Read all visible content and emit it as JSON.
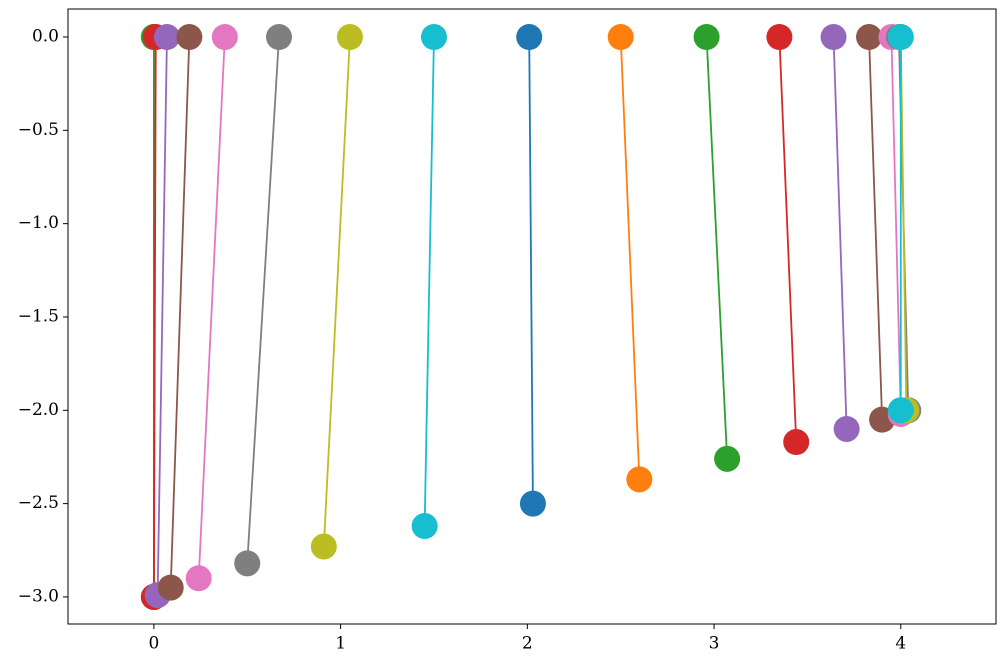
{
  "chart_data": {
    "type": "line",
    "xlim": [
      -0.46,
      4.51
    ],
    "ylim": [
      -3.145,
      0.15
    ],
    "xticks": [
      0,
      1,
      2,
      3,
      4
    ],
    "yticks": [
      {
        "value": 0,
        "label": "0.0"
      },
      {
        "value": -0.5,
        "label": "−0.5"
      },
      {
        "value": -1,
        "label": "−1.0"
      },
      {
        "value": -1.5,
        "label": "−1.5"
      },
      {
        "value": -2,
        "label": "−2.0"
      },
      {
        "value": -2.5,
        "label": "−2.5"
      },
      {
        "value": -3,
        "label": "−3.0"
      }
    ],
    "series": [
      {
        "color": "#1f77b4",
        "x": [
          0,
          0
        ],
        "values": [
          0,
          -3.0
        ]
      },
      {
        "color": "#ff7f0e",
        "x": [
          0,
          0
        ],
        "values": [
          0,
          -3.0
        ]
      },
      {
        "color": "#2ca02c",
        "x": [
          0,
          0
        ],
        "values": [
          0,
          -3.0
        ]
      },
      {
        "color": "#d62728",
        "x": [
          0.01,
          0
        ],
        "values": [
          0,
          -3.0
        ]
      },
      {
        "color": "#9467bd",
        "x": [
          0.07,
          0.02
        ],
        "values": [
          0,
          -2.99
        ]
      },
      {
        "color": "#8c564b",
        "x": [
          0.19,
          0.09
        ],
        "values": [
          0,
          -2.95
        ]
      },
      {
        "color": "#e377c2",
        "x": [
          0.38,
          0.24
        ],
        "values": [
          0,
          -2.9
        ]
      },
      {
        "color": "#7f7f7f",
        "x": [
          0.67,
          0.5
        ],
        "values": [
          0,
          -2.82
        ]
      },
      {
        "color": "#bcbd22",
        "x": [
          1.05,
          0.91
        ],
        "values": [
          0,
          -2.73
        ]
      },
      {
        "color": "#17becf",
        "x": [
          1.5,
          1.45
        ],
        "values": [
          0,
          -2.62
        ]
      },
      {
        "color": "#1f77b4",
        "x": [
          2.01,
          2.03
        ],
        "values": [
          0,
          -2.5
        ]
      },
      {
        "color": "#ff7f0e",
        "x": [
          2.5,
          2.6
        ],
        "values": [
          0,
          -2.37
        ]
      },
      {
        "color": "#2ca02c",
        "x": [
          2.96,
          3.07
        ],
        "values": [
          0,
          -2.26
        ]
      },
      {
        "color": "#d62728",
        "x": [
          3.35,
          3.44
        ],
        "values": [
          0,
          -2.17
        ]
      },
      {
        "color": "#9467bd",
        "x": [
          3.64,
          3.71
        ],
        "values": [
          0,
          -2.1
        ]
      },
      {
        "color": "#8c564b",
        "x": [
          3.83,
          3.9
        ],
        "values": [
          0,
          -2.05
        ]
      },
      {
        "color": "#e377c2",
        "x": [
          3.95,
          4.0
        ],
        "values": [
          0,
          -2.02
        ]
      },
      {
        "color": "#7f7f7f",
        "x": [
          3.99,
          4.04
        ],
        "values": [
          0,
          -2.0
        ]
      },
      {
        "color": "#bcbd22",
        "x": [
          4.0,
          4.03
        ],
        "values": [
          0,
          -2.0
        ]
      },
      {
        "color": "#17becf",
        "x": [
          4.0,
          4.0
        ],
        "values": [
          0,
          -2.0
        ]
      }
    ]
  }
}
